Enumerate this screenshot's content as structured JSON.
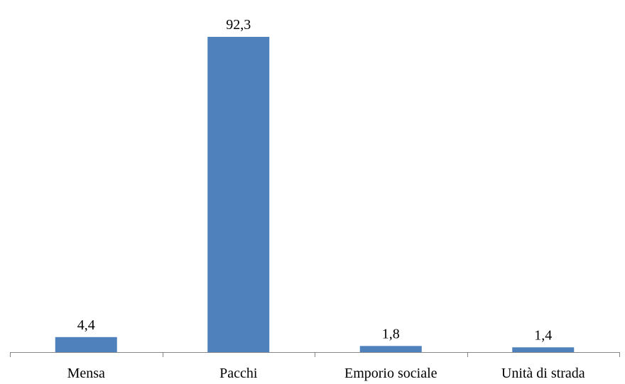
{
  "chart_data": {
    "type": "bar",
    "title": "",
    "xlabel": "",
    "ylabel": "",
    "categories": [
      "Mensa",
      "Pacchi",
      "Emporio sociale",
      "Unità di strada"
    ],
    "values": [
      4.4,
      92.3,
      1.8,
      1.4
    ],
    "data_labels": [
      "4,4",
      "92,3",
      "1,8",
      "1,4"
    ],
    "ylim": [
      0,
      92.3
    ],
    "grid": false,
    "legend": "none",
    "colors": {
      "bar": "#4f81bd",
      "axis": "#868686"
    }
  }
}
